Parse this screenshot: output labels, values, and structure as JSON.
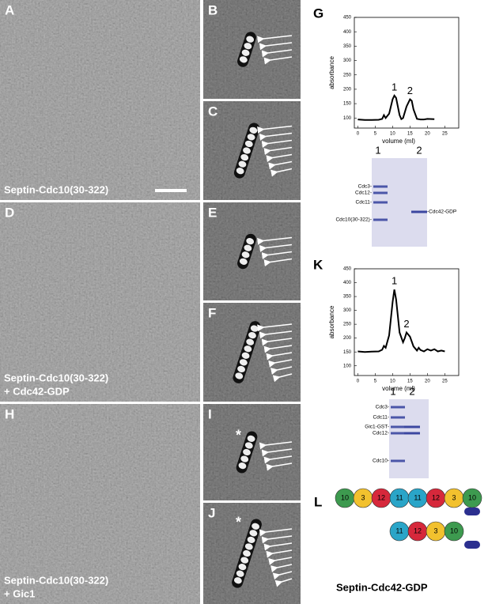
{
  "micrographs": [
    {
      "label": "A",
      "caption": [
        "Septin-Cdc10(30-322)"
      ]
    },
    {
      "label": "D",
      "caption": [
        "Septin-Cdc10(30-322)",
        "+ Cdc42-GDP"
      ]
    },
    {
      "label": "H",
      "caption": [
        "Septin-Cdc10(30-322)",
        "+ Gic1"
      ]
    }
  ],
  "class_averages": [
    {
      "label": "B"
    },
    {
      "label": "C"
    },
    {
      "label": "E"
    },
    {
      "label": "F"
    },
    {
      "label": "I",
      "mark": "*"
    },
    {
      "label": "J",
      "mark": "*"
    }
  ],
  "charts": [
    {
      "label": "G",
      "type": "line",
      "xlabel": "volume (ml)",
      "ylabel": "absorbance",
      "color": "#000000",
      "x": [
        0,
        2,
        4,
        6,
        7,
        7.5,
        8,
        9,
        10,
        10.5,
        11,
        12,
        12.5,
        13,
        14,
        15,
        15.5,
        16,
        17,
        18,
        19,
        20,
        22
      ],
      "values": [
        95,
        93,
        93,
        94,
        97,
        110,
        100,
        115,
        165,
        178,
        170,
        110,
        96,
        100,
        140,
        165,
        160,
        130,
        97,
        95,
        95,
        97,
        96
      ],
      "xlim": [
        -1,
        29
      ],
      "ylim": [
        65,
        450
      ],
      "xticks": [
        0,
        5,
        10,
        15,
        20,
        25
      ],
      "yticks": [
        100,
        150,
        200,
        250,
        300,
        350,
        400,
        450
      ],
      "annotations": [
        "1",
        "2"
      ],
      "gel": {
        "lanes": [
          "1",
          "2"
        ],
        "bands": [
          "Cdc3-",
          "Cdc12-",
          "Cdc11-",
          "Cdc10(30-322)-"
        ],
        "right_label": "-Cdc42-GDP"
      }
    },
    {
      "label": "K",
      "type": "line",
      "xlabel": "volume (ml)",
      "ylabel": "absorbance",
      "color": "#000000",
      "x": [
        0,
        2,
        4,
        6,
        7,
        7.5,
        8,
        9,
        10,
        10.5,
        11,
        12,
        13,
        13.5,
        14,
        15,
        16,
        17,
        17.5,
        18,
        19,
        20,
        21,
        22,
        23,
        24,
        25
      ],
      "values": [
        152,
        150,
        151,
        152,
        158,
        172,
        165,
        210,
        330,
        375,
        340,
        220,
        185,
        200,
        220,
        205,
        170,
        155,
        165,
        157,
        152,
        160,
        155,
        160,
        152,
        155,
        152
      ],
      "xlim": [
        -1,
        29
      ],
      "ylim": [
        65,
        450
      ],
      "xticks": [
        0,
        5,
        10,
        15,
        20,
        25
      ],
      "yticks": [
        100,
        150,
        200,
        250,
        300,
        350,
        400,
        450
      ],
      "annotations": [
        "1",
        "2"
      ],
      "gel": {
        "lanes": [
          "1",
          "2"
        ],
        "bands": [
          "Cdc3-",
          "Cdc11-",
          "Gic1-GST-",
          "Cdc12-",
          "Cdc10-"
        ]
      }
    }
  ],
  "diagram": {
    "label": "L",
    "rows": [
      [
        "10",
        "3",
        "12",
        "11",
        "11",
        "12",
        "3",
        "10"
      ],
      [
        "11",
        "12",
        "3",
        "10"
      ]
    ],
    "colors": {
      "10": "#3d9a4f",
      "3": "#f2c12e",
      "12": "#d6283b",
      "11": "#2aa5c8"
    },
    "cap_color": "#2b2f8f",
    "caption": "Septin-Cdc42-GDP"
  }
}
